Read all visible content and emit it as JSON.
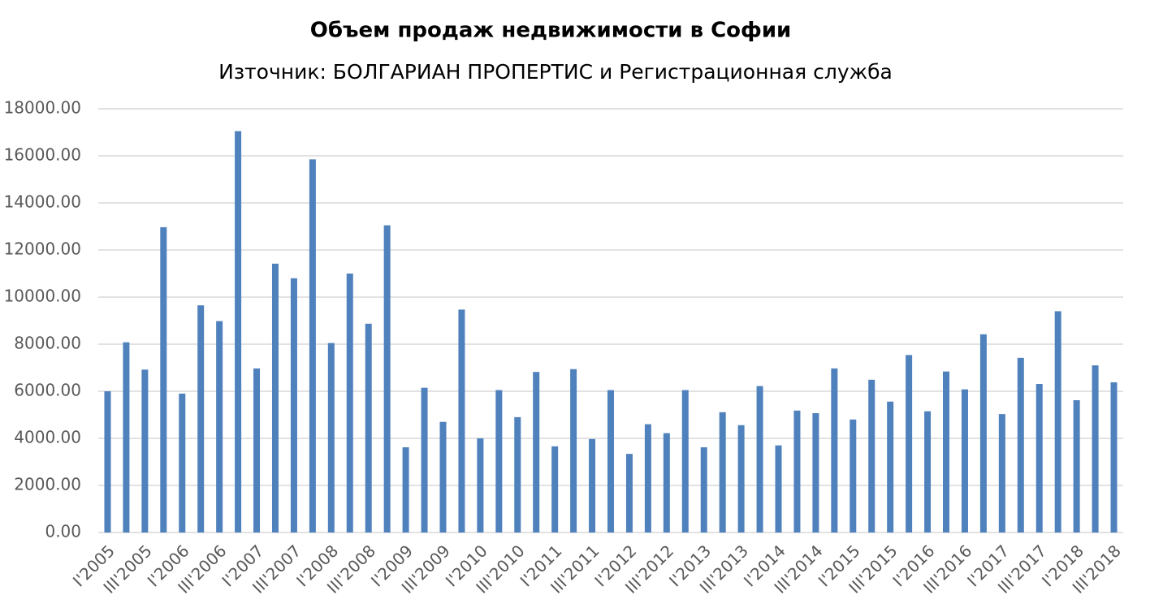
{
  "chart_data": {
    "type": "bar",
    "title": "Объем продаж недвижимости в Софии",
    "subtitle": "Източник: БОЛГАРИАН ПРОПЕРТИС и Регистрационная служба",
    "categories": [
      "I'2005",
      null,
      "III'2005",
      null,
      "I'2006",
      null,
      "III'2006",
      null,
      "I'2007",
      null,
      "III'2007",
      null,
      "I'2008",
      null,
      "III'2008",
      null,
      "I'2009",
      null,
      "III'2009",
      null,
      "I'2010",
      null,
      "III'2010",
      null,
      "I'2011",
      null,
      "III'2011",
      null,
      "I'2012",
      null,
      "III'2012",
      null,
      "I'2013",
      null,
      "III'2013",
      null,
      "I'2014",
      null,
      "III'2014",
      null,
      "I'2015",
      null,
      "III'2015",
      null,
      "I'2016",
      null,
      "III'2016",
      null,
      "I'2017",
      null,
      "III'2017",
      null,
      "I'2018",
      null,
      "III'2018"
    ],
    "values": [
      6000,
      8080,
      6920,
      12970,
      5900,
      9650,
      8980,
      17050,
      6970,
      11420,
      10800,
      15850,
      8050,
      11000,
      8870,
      13050,
      3620,
      6150,
      4700,
      9470,
      4000,
      6050,
      4900,
      6820,
      3660,
      6940,
      3970,
      6050,
      3340,
      4600,
      4220,
      6050,
      3620,
      5110,
      4560,
      6220,
      3700,
      5180,
      5070,
      6970,
      4800,
      6490,
      5560,
      7540,
      5150,
      6840,
      6080,
      8420,
      5030,
      7420,
      6310,
      9400,
      5620,
      7100,
      6380
    ],
    "color": "#4f81bd",
    "ylim": [
      0,
      18000
    ],
    "yticks": [
      {
        "value": 0,
        "label": "0.00"
      },
      {
        "value": 2000,
        "label": "2000.00"
      },
      {
        "value": 4000,
        "label": "4000.00"
      },
      {
        "value": 6000,
        "label": "6000.00"
      },
      {
        "value": 8000,
        "label": "8000.00"
      },
      {
        "value": 10000,
        "label": "10000.00"
      },
      {
        "value": 12000,
        "label": "12000.00"
      },
      {
        "value": 14000,
        "label": "14000.00"
      },
      {
        "value": 16000,
        "label": "16000.00"
      },
      {
        "value": 18000,
        "label": "18000.00"
      }
    ],
    "grid": true
  }
}
